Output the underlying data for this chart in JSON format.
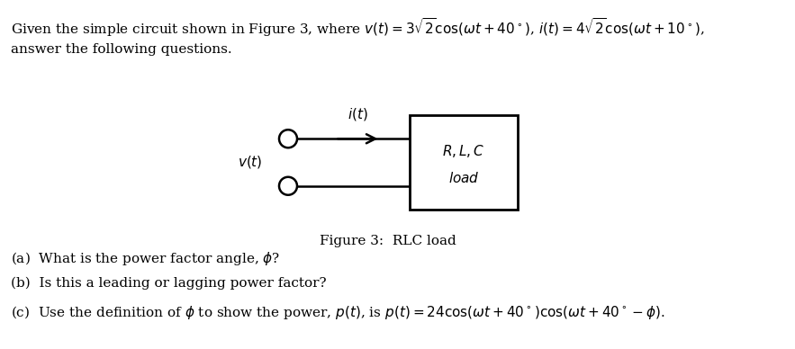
{
  "bg_color": "#ffffff",
  "text_color": "#000000",
  "fig_width": 8.83,
  "fig_height": 3.88,
  "dpi": 100,
  "top_line1_plain": "Given the simple circuit shown in Figure 3, where ",
  "top_line1_math1": "$v(t) = 3\\sqrt{2}\\cos(\\omega t + 40^{\\circ})$",
  "top_line1_sep": ", ",
  "top_line1_math2": "$i(t) = 4\\sqrt{2}\\cos(\\omega t + 10^{\\circ})$",
  "top_line1_end": ",",
  "top_line2": "answer the following questions.",
  "figure_caption": "Figure 3:  RLC load",
  "box_label1": "$R, L, C$",
  "box_label2": "$load$",
  "it_label": "$i(t)$",
  "vt_label": "$v(t)$",
  "qa": "(a)  What is the power factor angle, $\\phi$?",
  "qb": "(b)  Is this a leading or lagging power factor?",
  "qc_plain1": "(c)  Use the definition of ",
  "qc_phi": "$\\phi$",
  "qc_plain2": " to show the power, ",
  "qc_pt": "$p(t)$",
  "qc_plain3": ", is ",
  "qc_math": "$p(t) = 24\\cos(\\omega t + 40^{\\circ})\\cos(\\omega t + 40^{\\circ} - \\phi)$",
  "qc_end": ".",
  "fontsize": 11,
  "fontsize_small": 10.5
}
